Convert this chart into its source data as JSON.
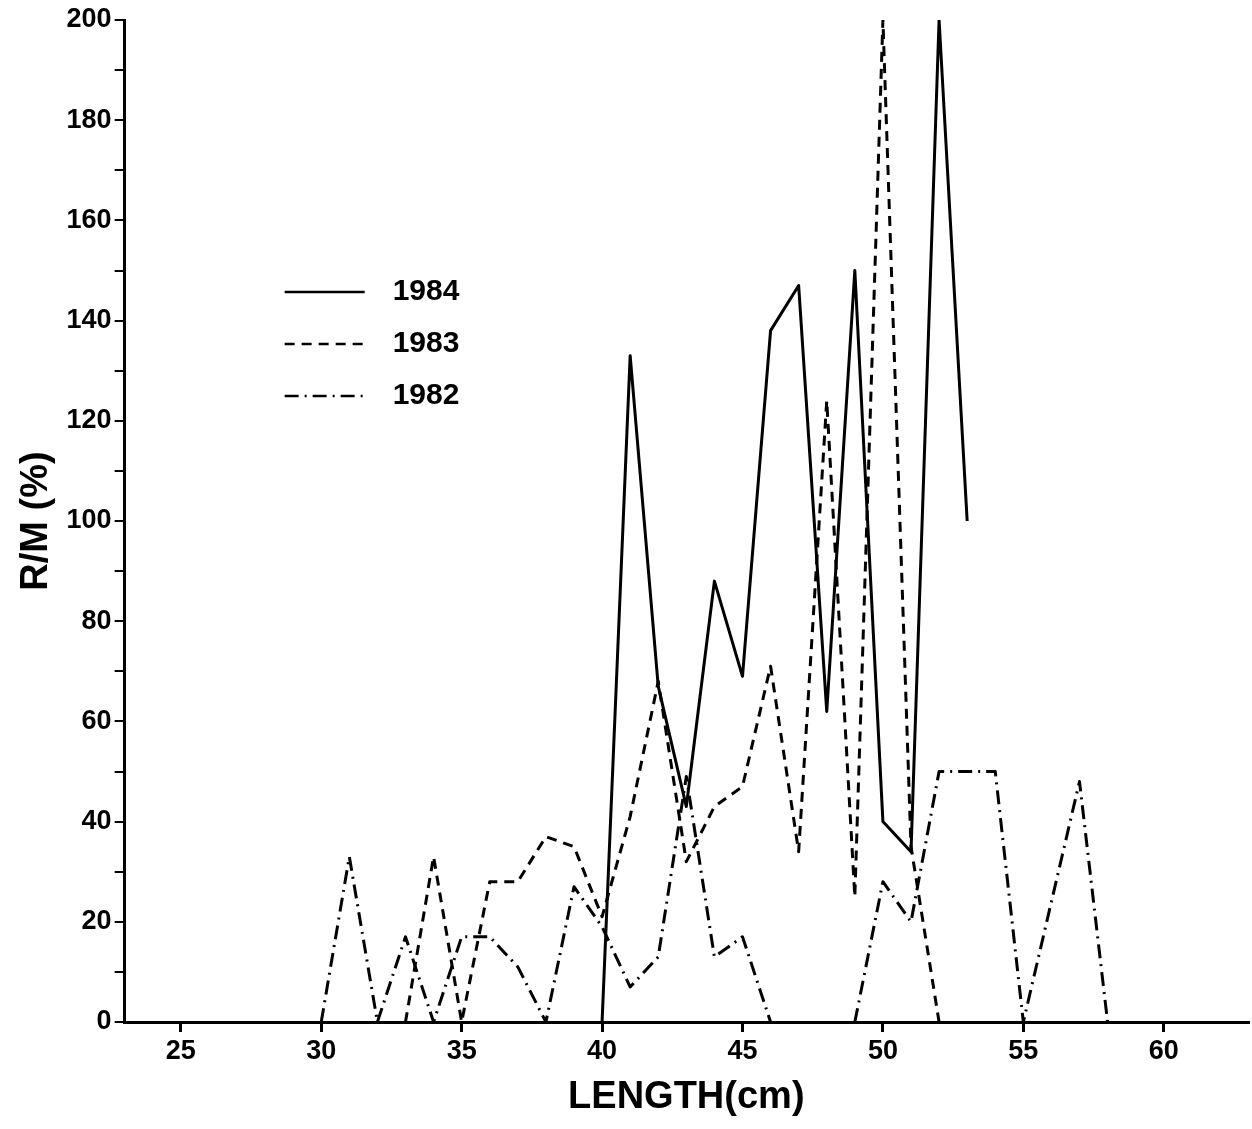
{
  "chart_data": {
    "type": "line",
    "xlabel": "LENGTH(cm)",
    "ylabel": "R/M (%)",
    "xlim": [
      23,
      63
    ],
    "xticks": [
      25,
      30,
      35,
      40,
      45,
      50,
      55,
      60
    ],
    "ylim": [
      0,
      200
    ],
    "yticks": [
      0,
      {
        "value": 10,
        "label": null
      },
      20,
      {
        "value": 30,
        "label": null
      },
      40,
      {
        "value": 50,
        "label": null
      },
      60,
      {
        "value": 70,
        "label": null
      },
      80,
      {
        "value": 90,
        "label": null
      },
      100,
      {
        "value": 110,
        "label": null
      },
      120,
      {
        "value": 130,
        "label": null
      },
      140,
      {
        "value": 150,
        "label": null
      },
      160,
      {
        "value": 170,
        "label": null
      },
      180,
      {
        "value": 190,
        "label": null
      },
      200
    ],
    "grid": false,
    "legend": "top left",
    "marker": "none",
    "series": [
      {
        "name": "1984",
        "color": "#000000",
        "line_style": "solid",
        "x": [
          40,
          41,
          42,
          43,
          44,
          45,
          46,
          47,
          48,
          49,
          50,
          51,
          52,
          53
        ],
        "values": [
          0,
          133,
          67,
          43,
          88,
          69,
          138,
          147,
          62,
          150,
          40,
          34,
          200,
          100
        ]
      },
      {
        "name": "1983",
        "color": "#000000",
        "line_style": "dashed",
        "x": [
          33,
          34,
          35,
          36,
          37,
          38,
          39,
          40,
          41,
          42,
          43,
          44,
          45,
          46,
          47,
          48,
          49,
          50,
          51,
          52
        ],
        "values": [
          0,
          33,
          0,
          28,
          28,
          37,
          35,
          21,
          41,
          68,
          32,
          43,
          47,
          71,
          34,
          124,
          25,
          200,
          35,
          0
        ]
      },
      {
        "name": "1982",
        "color": "#000000",
        "line_style": "dashdot",
        "x": [
          30,
          31,
          32,
          33,
          34,
          35,
          36,
          37,
          38,
          39,
          40,
          41,
          42,
          43,
          44,
          45,
          46,
          47,
          48,
          49,
          50,
          51,
          52,
          53,
          54,
          55,
          56,
          57,
          58
        ],
        "values": [
          0,
          33,
          0,
          17,
          0,
          17,
          17,
          11,
          0,
          27,
          19,
          7,
          13,
          49,
          13,
          17,
          0,
          null,
          null,
          0,
          28,
          20,
          50,
          50,
          50,
          0,
          24,
          48,
          0
        ]
      }
    ]
  }
}
